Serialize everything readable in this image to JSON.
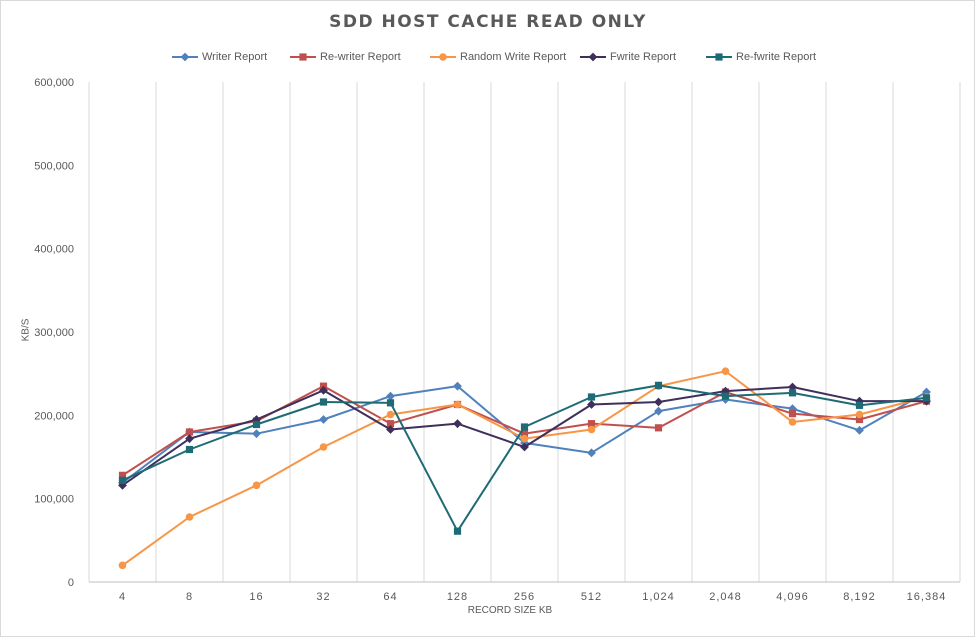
{
  "chart_data": {
    "type": "line",
    "title": "SDD HOST CACHE READ ONLY",
    "xlabel": "RECORD SIZE KB",
    "ylabel": "KB/S",
    "ylim": [
      0,
      600000
    ],
    "yticks": [
      0,
      100000,
      200000,
      300000,
      400000,
      500000,
      600000
    ],
    "ytick_labels": [
      "0",
      "100,000",
      "200,000",
      "300,000",
      "400,000",
      "500,000",
      "600,000"
    ],
    "categories": [
      "4",
      "8",
      "16",
      "32",
      "64",
      "128",
      "256",
      "512",
      "1,024",
      "2,048",
      "4,096",
      "8,192",
      "16,384"
    ],
    "grid": "vertical",
    "legend_position": "top",
    "series": [
      {
        "name": "Writer Report",
        "color": "#4f81bd",
        "marker": "diamond",
        "values": [
          119000,
          180000,
          178000,
          195000,
          223000,
          235000,
          167000,
          155000,
          205000,
          219000,
          208000,
          182000,
          228000
        ]
      },
      {
        "name": "Re-writer Report",
        "color": "#c0504d",
        "marker": "square",
        "values": [
          128000,
          180000,
          193000,
          235000,
          190000,
          213000,
          178000,
          190000,
          185000,
          228000,
          202000,
          195000,
          217000
        ]
      },
      {
        "name": "Random Write Report",
        "color": "#f79646",
        "marker": "circle",
        "values": [
          20000,
          78000,
          116000,
          162000,
          201000,
          213000,
          172000,
          183000,
          235000,
          253000,
          192000,
          201000,
          222000
        ]
      },
      {
        "name": "Fwrite Report",
        "color": "#3f2f5c",
        "marker": "diamond",
        "values": [
          116000,
          172000,
          195000,
          230000,
          183000,
          190000,
          162000,
          213000,
          216000,
          229000,
          234000,
          217000,
          217000
        ]
      },
      {
        "name": "Re-fwrite Report",
        "color": "#1f6b75",
        "marker": "square",
        "values": [
          122000,
          159000,
          189000,
          216000,
          215000,
          61000,
          186000,
          222000,
          236000,
          223000,
          227000,
          212000,
          221000
        ]
      }
    ]
  }
}
